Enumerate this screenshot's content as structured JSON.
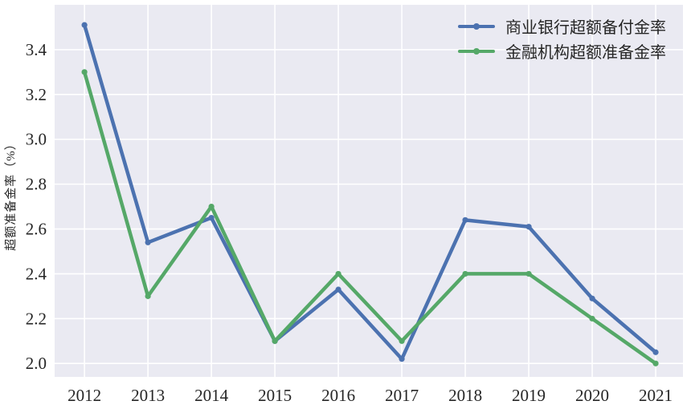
{
  "chart_data": {
    "type": "line",
    "title": "",
    "xlabel": "",
    "ylabel": "超额准备金率（%）",
    "x": [
      2012,
      2013,
      2014,
      2015,
      2016,
      2017,
      2018,
      2019,
      2020,
      2021
    ],
    "x_tick_labels": [
      "2012",
      "2013",
      "2014",
      "2015",
      "2016",
      "2017",
      "2018",
      "2019",
      "2020",
      "2021"
    ],
    "series": [
      {
        "name": "商业银行超额备付金率",
        "color": "#4c72b0",
        "values": [
          3.51,
          2.54,
          2.65,
          2.1,
          2.33,
          2.02,
          2.64,
          2.61,
          2.29,
          2.05
        ]
      },
      {
        "name": "金融机构超额准备金率",
        "color": "#55a868",
        "values": [
          3.3,
          2.3,
          2.7,
          2.1,
          2.4,
          2.1,
          2.4,
          2.4,
          2.2,
          2.0
        ]
      }
    ],
    "y_ticks": [
      2.0,
      2.2,
      2.4,
      2.6,
      2.8,
      3.0,
      3.2,
      3.4
    ],
    "y_tick_labels": [
      "2.0",
      "2.2",
      "2.4",
      "2.6",
      "2.8",
      "3.0",
      "3.2",
      "3.4"
    ],
    "ylim": [
      1.94,
      3.6
    ],
    "xlim": [
      2011.53,
      2021.43
    ],
    "grid": true,
    "legend_position": "upper right",
    "colors": {
      "plot_bg": "#eaeaf2",
      "grid": "#ffffff",
      "text": "#262626"
    }
  }
}
